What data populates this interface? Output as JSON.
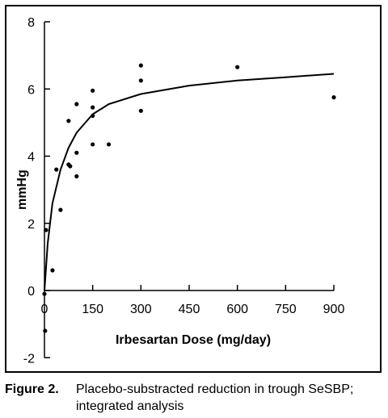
{
  "chart_data": {
    "type": "scatter",
    "xlabel": "Irbesartan Dose (mg/day)",
    "ylabel": "mmHg",
    "xlim": [
      0,
      900
    ],
    "ylim": [
      -2,
      8
    ],
    "x_ticks": [
      0,
      150,
      300,
      450,
      600,
      750,
      900
    ],
    "y_ticks": [
      -2,
      0,
      2,
      4,
      6,
      8
    ],
    "grid": false,
    "series": [
      {
        "kind": "points",
        "points": [
          {
            "x": 0,
            "y": -0.1
          },
          {
            "x": 2,
            "y": -1.2
          },
          {
            "x": 5,
            "y": 1.8
          },
          {
            "x": 25,
            "y": 0.6
          },
          {
            "x": 37,
            "y": 3.6
          },
          {
            "x": 50,
            "y": 2.4
          },
          {
            "x": 75,
            "y": 5.05
          },
          {
            "x": 75,
            "y": 3.75
          },
          {
            "x": 80,
            "y": 3.7
          },
          {
            "x": 100,
            "y": 5.55
          },
          {
            "x": 100,
            "y": 4.1
          },
          {
            "x": 100,
            "y": 3.4
          },
          {
            "x": 150,
            "y": 5.95
          },
          {
            "x": 150,
            "y": 5.45
          },
          {
            "x": 150,
            "y": 5.2
          },
          {
            "x": 150,
            "y": 4.35
          },
          {
            "x": 200,
            "y": 4.35
          },
          {
            "x": 300,
            "y": 6.7
          },
          {
            "x": 300,
            "y": 6.25
          },
          {
            "x": 300,
            "y": 5.35
          },
          {
            "x": 600,
            "y": 6.65
          },
          {
            "x": 900,
            "y": 5.75
          }
        ]
      },
      {
        "kind": "fitted-curve",
        "curve": [
          {
            "x": 0,
            "y": 0
          },
          {
            "x": 10,
            "y": 1.4
          },
          {
            "x": 25,
            "y": 2.6
          },
          {
            "x": 50,
            "y": 3.6
          },
          {
            "x": 75,
            "y": 4.25
          },
          {
            "x": 100,
            "y": 4.7
          },
          {
            "x": 150,
            "y": 5.25
          },
          {
            "x": 200,
            "y": 5.55
          },
          {
            "x": 300,
            "y": 5.85
          },
          {
            "x": 450,
            "y": 6.1
          },
          {
            "x": 600,
            "y": 6.25
          },
          {
            "x": 750,
            "y": 6.35
          },
          {
            "x": 900,
            "y": 6.45
          }
        ]
      }
    ]
  },
  "caption": {
    "label": "Figure 2.",
    "text": "Placebo-substracted reduction in trough SeSBP; integrated analysis"
  }
}
